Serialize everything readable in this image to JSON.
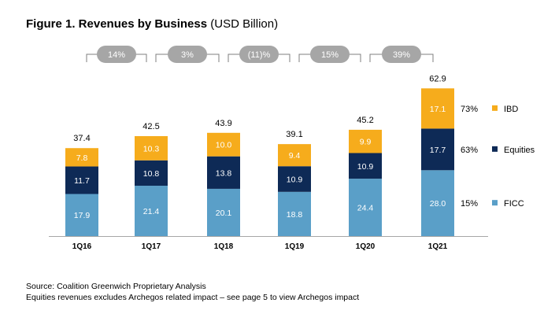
{
  "title": {
    "main": "Figure 1. Revenues by Business",
    "unit": "(USD Billion)"
  },
  "chart_data": {
    "type": "bar",
    "stacked": true,
    "categories": [
      "1Q16",
      "1Q17",
      "1Q18",
      "1Q19",
      "1Q20",
      "1Q21"
    ],
    "series": [
      {
        "name": "FICC",
        "color": "#5a9fc8",
        "label_color": "#ffffff",
        "values": [
          17.9,
          21.4,
          20.1,
          18.8,
          24.4,
          28.0
        ],
        "labels": [
          "17.9",
          "21.4",
          "20.1",
          "18.8",
          "24.4",
          "28.0"
        ]
      },
      {
        "name": "Equities",
        "color": "#0e2a56",
        "label_color": "#ffffff",
        "values": [
          11.7,
          10.8,
          13.8,
          10.9,
          10.9,
          17.7
        ],
        "labels": [
          "11.7",
          "10.8",
          "13.8",
          "10.9",
          "10.9",
          "17.7"
        ]
      },
      {
        "name": "IBD",
        "color": "#f6ac1c",
        "label_color": "#ffffff",
        "values": [
          7.8,
          10.3,
          10.0,
          9.4,
          9.9,
          17.1
        ],
        "labels": [
          "7.8",
          "10.3",
          "10.0",
          "9.4",
          "9.9",
          "17.1"
        ]
      }
    ],
    "totals": [
      "37.4",
      "42.5",
      "43.9",
      "39.1",
      "45.2",
      "62.9"
    ],
    "growth": [
      "14%",
      "3%",
      "(11)%",
      "15%",
      "39%"
    ],
    "legend": [
      {
        "name": "IBD",
        "pct": "73%"
      },
      {
        "name": "Equities",
        "pct": "63%"
      },
      {
        "name": "FICC",
        "pct": "15%"
      }
    ],
    "ylim": [
      0,
      62.9
    ],
    "grid": false,
    "legend_position": "right"
  },
  "source": {
    "line1": "Source: Coalition Greenwich Proprietary Analysis",
    "line2": "Equities revenues excludes Archegos related impact – see page 5 to view Archegos impact"
  }
}
